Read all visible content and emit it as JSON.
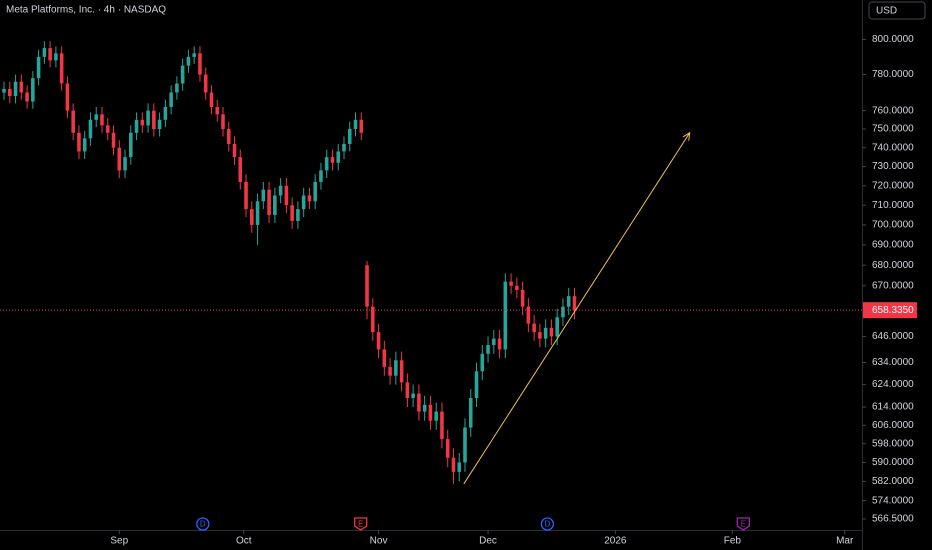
{
  "chart_data": {
    "type": "candlestick",
    "title": "Meta Platforms, Inc. · 4h · NASDAQ",
    "currency": "USD",
    "log_scale": true,
    "up_color": "#26a69a",
    "down_color": "#f23645",
    "background": "#000000",
    "x": [
      -20,
      -19,
      -18,
      -17,
      -16,
      -15,
      -14,
      -13,
      -12,
      -11,
      -10,
      -9,
      -8,
      -7,
      -6,
      -5,
      -4,
      -3,
      -2,
      -1,
      0,
      1,
      2,
      3,
      4,
      5,
      6,
      7,
      8,
      9,
      10,
      11,
      12,
      13,
      14,
      15,
      16,
      17,
      18,
      19,
      20,
      21,
      22,
      23,
      24,
      25,
      26,
      27,
      28,
      29,
      30,
      31,
      32,
      33,
      34,
      35,
      36,
      37,
      38,
      39,
      40,
      41,
      42,
      43,
      44,
      45,
      46,
      47,
      48,
      49,
      50,
      51,
      52,
      53,
      54,
      55,
      56,
      57,
      58,
      59,
      60,
      61,
      62,
      63,
      64,
      65,
      66,
      67,
      68,
      69,
      70,
      71,
      72,
      73,
      74,
      75,
      76,
      77,
      78,
      79
    ],
    "open": [
      770,
      772,
      768,
      776,
      770,
      765,
      778,
      790,
      795,
      788,
      792,
      775,
      760,
      748,
      738,
      745,
      755,
      758,
      752,
      748,
      740,
      728,
      735,
      748,
      755,
      752,
      760,
      750,
      755,
      762,
      770,
      775,
      785,
      790,
      792,
      780,
      770,
      762,
      758,
      750,
      742,
      735,
      722,
      708,
      700,
      712,
      718,
      705,
      715,
      720,
      710,
      702,
      708,
      715,
      712,
      722,
      728,
      735,
      732,
      738,
      742,
      750,
      755,
      680,
      660,
      648,
      640,
      632,
      628,
      635,
      625,
      618,
      620,
      612,
      615,
      608,
      612,
      600,
      592,
      586,
      590,
      605,
      618,
      630,
      638,
      642,
      645,
      640,
      672,
      670,
      668,
      660,
      652,
      648,
      645,
      650,
      646,
      655,
      660,
      665
    ],
    "high": [
      776,
      776,
      780,
      780,
      774,
      782,
      794,
      799,
      799,
      796,
      796,
      779,
      764,
      752,
      749,
      759,
      762,
      762,
      756,
      752,
      744,
      739,
      752,
      759,
      759,
      764,
      764,
      759,
      766,
      774,
      779,
      789,
      794,
      796,
      796,
      784,
      774,
      766,
      762,
      754,
      746,
      739,
      726,
      712,
      716,
      722,
      722,
      719,
      724,
      724,
      714,
      712,
      719,
      719,
      726,
      732,
      739,
      739,
      742,
      746,
      754,
      759,
      759,
      682,
      664,
      652,
      644,
      636,
      639,
      639,
      629,
      624,
      624,
      619,
      619,
      616,
      616,
      604,
      596,
      594,
      609,
      622,
      634,
      642,
      646,
      649,
      649,
      676,
      676,
      674,
      672,
      664,
      656,
      652,
      654,
      654,
      659,
      664,
      669,
      669
    ],
    "low": [
      766,
      764,
      764,
      766,
      761,
      761,
      774,
      786,
      784,
      784,
      771,
      756,
      744,
      734,
      734,
      741,
      751,
      748,
      744,
      736,
      724,
      724,
      731,
      744,
      748,
      748,
      746,
      746,
      751,
      758,
      766,
      771,
      781,
      786,
      776,
      766,
      758,
      754,
      746,
      738,
      731,
      718,
      704,
      696,
      690,
      708,
      701,
      701,
      711,
      706,
      698,
      698,
      704,
      708,
      708,
      718,
      724,
      728,
      728,
      734,
      738,
      746,
      744,
      654,
      644,
      636,
      628,
      624,
      624,
      621,
      614,
      614,
      608,
      608,
      604,
      604,
      596,
      588,
      581,
      582,
      586,
      601,
      614,
      626,
      634,
      638,
      636,
      636,
      666,
      664,
      656,
      648,
      644,
      641,
      641,
      642,
      642,
      651,
      656,
      654
    ],
    "close": [
      772,
      768,
      776,
      770,
      765,
      778,
      790,
      795,
      788,
      792,
      775,
      760,
      748,
      738,
      745,
      755,
      758,
      752,
      748,
      740,
      728,
      735,
      748,
      755,
      752,
      760,
      750,
      755,
      762,
      770,
      775,
      785,
      790,
      792,
      780,
      770,
      762,
      758,
      750,
      742,
      735,
      722,
      708,
      700,
      712,
      718,
      705,
      715,
      720,
      710,
      702,
      708,
      715,
      712,
      722,
      728,
      735,
      732,
      738,
      742,
      750,
      755,
      748,
      660,
      648,
      640,
      632,
      628,
      635,
      625,
      618,
      620,
      612,
      615,
      608,
      612,
      600,
      592,
      586,
      590,
      605,
      618,
      630,
      638,
      642,
      645,
      640,
      672,
      670,
      668,
      660,
      652,
      648,
      645,
      650,
      646,
      655,
      660,
      665,
      658.335
    ],
    "last_price": {
      "value": 658.335,
      "label": "658.3350"
    },
    "xlim": [
      -20.7,
      128.9
    ],
    "xticks": [
      {
        "value": 0,
        "label": "Sep"
      },
      {
        "value": 21.6,
        "label": "Oct"
      },
      {
        "value": 45,
        "label": "Nov"
      },
      {
        "value": 64,
        "label": "Dec"
      },
      {
        "value": 86.1,
        "label": "2026"
      },
      {
        "value": 106.4,
        "label": "Feb"
      },
      {
        "value": 125.9,
        "label": "Mar"
      }
    ],
    "ylim": [
      823,
      562
    ],
    "yticks": [
      {
        "value": 800,
        "label": "800.0000"
      },
      {
        "value": 780,
        "label": "780.0000"
      },
      {
        "value": 760,
        "label": "760.0000"
      },
      {
        "value": 750,
        "label": "750.0000"
      },
      {
        "value": 740,
        "label": "740.0000"
      },
      {
        "value": 730,
        "label": "730.0000"
      },
      {
        "value": 720,
        "label": "720.0000"
      },
      {
        "value": 710,
        "label": "710.0000"
      },
      {
        "value": 700,
        "label": "700.0000"
      },
      {
        "value": 690,
        "label": "690.0000"
      },
      {
        "value": 680,
        "label": "680.0000"
      },
      {
        "value": 670,
        "label": "670.0000"
      },
      {
        "value": 646,
        "label": "646.0000"
      },
      {
        "value": 634,
        "label": "634.0000"
      },
      {
        "value": 624,
        "label": "624.0000"
      },
      {
        "value": 614,
        "label": "614.0000"
      },
      {
        "value": 606,
        "label": "606.0000"
      },
      {
        "value": 598,
        "label": "598.0000"
      },
      {
        "value": 590,
        "label": "590.0000"
      },
      {
        "value": 582,
        "label": "582.0000"
      },
      {
        "value": 574,
        "label": "574.0000"
      },
      {
        "value": 566.5,
        "label": "566.5000"
      }
    ],
    "events": [
      {
        "label": "D",
        "x": 14.5,
        "color": "#2962ff"
      },
      {
        "label": "E",
        "x": 41.9,
        "color": "#f23645"
      },
      {
        "label": "D",
        "x": 74.3,
        "color": "#2962ff"
      },
      {
        "label": "E",
        "x": 108.3,
        "color": "#9c27b0"
      }
    ],
    "trendline": {
      "x": [
        59.8,
        99
      ],
      "y": [
        581,
        748
      ],
      "color": "#f5c04a"
    }
  }
}
